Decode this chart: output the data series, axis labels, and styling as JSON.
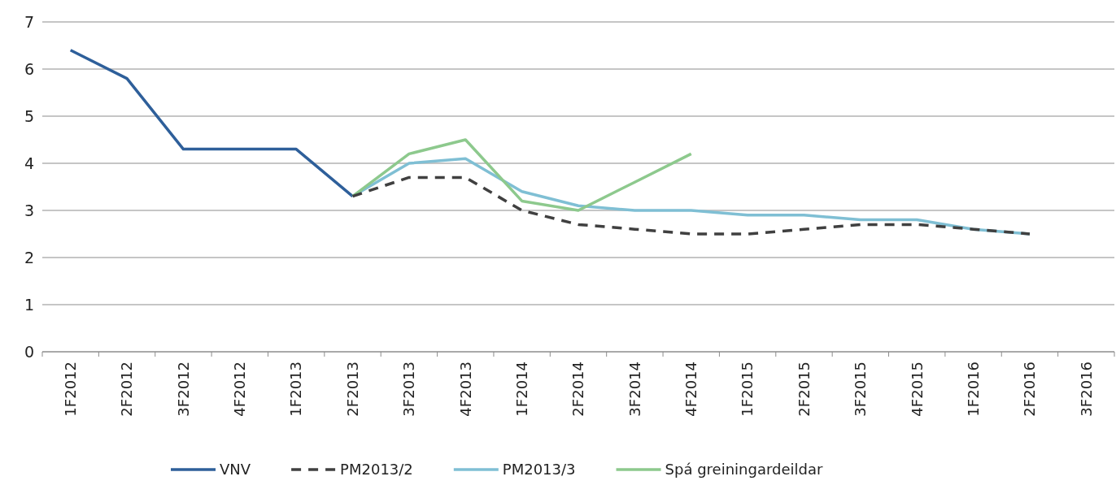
{
  "chart_data": {
    "type": "line",
    "categories": [
      "1F2012",
      "2F2012",
      "3F2012",
      "4F2012",
      "1F2013",
      "2F2013",
      "3F2013",
      "4F2013",
      "1F2014",
      "2F2014",
      "3F2014",
      "4F2014",
      "1F2015",
      "2F2015",
      "3F2015",
      "4F2015",
      "1F2016",
      "2F2016",
      "3F2016"
    ],
    "series": [
      {
        "name": "VNV",
        "color": "#2e5f9a",
        "line_style": "solid",
        "values": [
          6.4,
          5.8,
          4.3,
          4.3,
          4.3,
          3.3,
          null,
          null,
          null,
          null,
          null,
          null,
          null,
          null,
          null,
          null,
          null,
          null,
          null
        ]
      },
      {
        "name": "PM2013/2",
        "color": "#404040",
        "line_style": "dashed",
        "values": [
          null,
          null,
          null,
          null,
          null,
          3.3,
          3.7,
          3.7,
          3.0,
          2.7,
          2.6,
          2.5,
          2.5,
          2.6,
          2.7,
          2.7,
          2.6,
          2.5,
          null
        ]
      },
      {
        "name": "PM2013/3",
        "color": "#7fbfd4",
        "line_style": "solid",
        "values": [
          null,
          null,
          null,
          null,
          null,
          3.3,
          4.0,
          4.1,
          3.4,
          3.1,
          3.0,
          3.0,
          2.9,
          2.9,
          2.8,
          2.8,
          2.6,
          2.5,
          null
        ]
      },
      {
        "name": "Spá greiningardeildar",
        "color": "#8dc98d",
        "line_style": "solid",
        "values": [
          null,
          null,
          null,
          null,
          null,
          3.3,
          4.2,
          4.5,
          3.2,
          3.0,
          3.6,
          4.2,
          null,
          null,
          null,
          null,
          null,
          null,
          null
        ]
      }
    ],
    "ylim": [
      0,
      7
    ],
    "yticks": [
      0,
      1,
      2,
      3,
      4,
      5,
      6,
      7
    ],
    "grid": "y",
    "legend": "bottom",
    "marker": "none"
  }
}
